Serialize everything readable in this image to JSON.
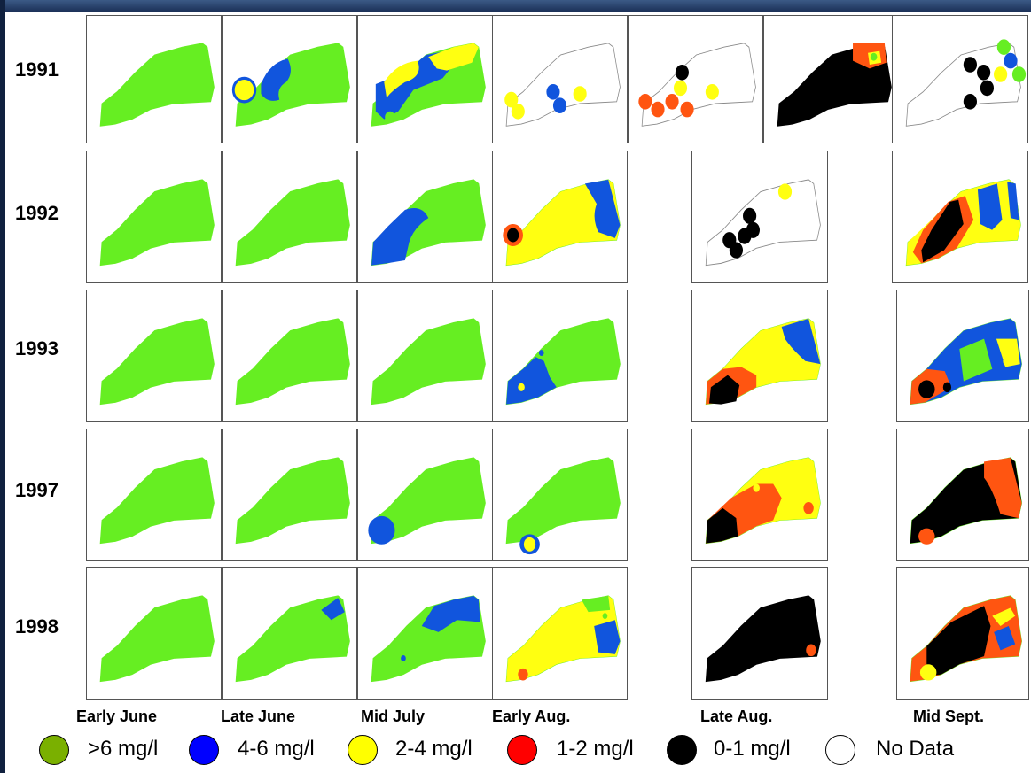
{
  "years": [
    "1991",
    "1992",
    "1993",
    "1997",
    "1998"
  ],
  "periods": [
    "Early June",
    "Late June",
    "Mid July",
    "Early Aug.",
    "Late Aug.",
    "Mid Sept."
  ],
  "legend": [
    {
      "label": ">6 mg/l",
      "color": "#7ab000"
    },
    {
      "label": "4-6 mg/l",
      "color": "#0000ff"
    },
    {
      "label": "2-4 mg/l",
      "color": "#ffff00"
    },
    {
      "label": "1-2 mg/l",
      "color": "#ff0000"
    },
    {
      "label": "0-1 mg/l",
      "color": "#000000"
    },
    {
      "label": "No Data",
      "color": "#ffffff"
    }
  ],
  "map_colors": {
    "green": "#66ee22",
    "blue": "#1155dd",
    "yellow": "#ffff11",
    "orange": "#ff5511",
    "black": "#000000",
    "white": "#ffffff"
  }
}
